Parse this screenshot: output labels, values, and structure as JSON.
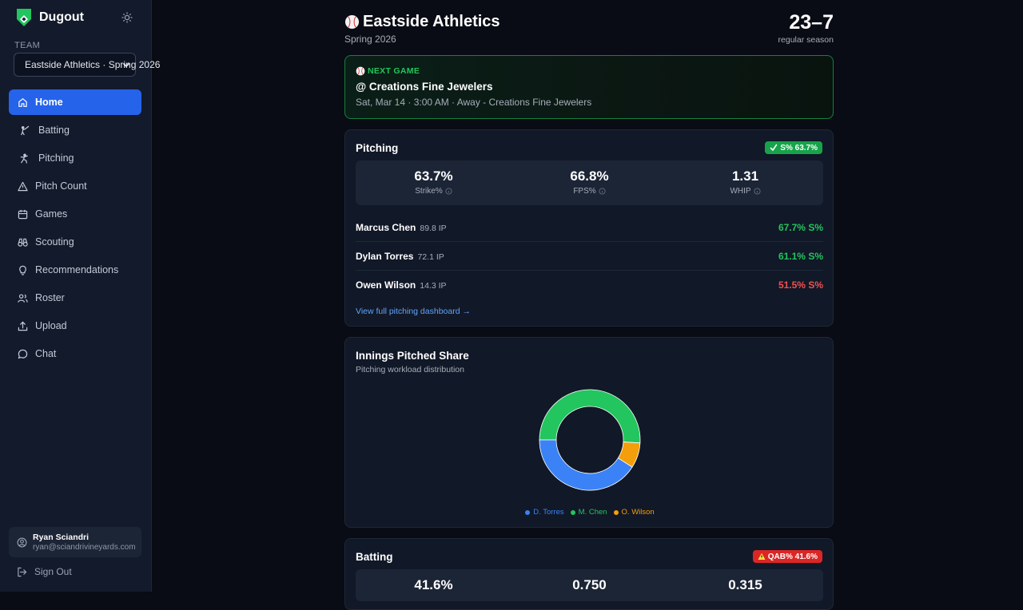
{
  "app": {
    "name": "Dugout"
  },
  "sidebar": {
    "team_label": "TEAM",
    "team_select_value": "Eastside Athletics · Spring 2026",
    "nav": [
      {
        "label": "Home",
        "icon": "home-icon",
        "active": true
      },
      {
        "label": "Batting",
        "icon": "batter-icon"
      },
      {
        "label": "Pitching",
        "icon": "pitcher-icon"
      },
      {
        "label": "Pitch Count",
        "icon": "warning-triangle-icon"
      },
      {
        "label": "Games",
        "icon": "calendar-icon"
      },
      {
        "label": "Scouting",
        "icon": "binoculars-icon"
      },
      {
        "label": "Recommendations",
        "icon": "lightbulb-icon"
      },
      {
        "label": "Roster",
        "icon": "users-icon"
      },
      {
        "label": "Upload",
        "icon": "upload-icon"
      },
      {
        "label": "Chat",
        "icon": "chat-bubble-icon"
      }
    ],
    "user": {
      "name": "Ryan Sciandri",
      "email": "ryan@sciandrivineyards.com"
    },
    "sign_out": "Sign Out"
  },
  "header": {
    "team_name": "Eastside Athletics",
    "season": "Spring 2026",
    "record": "23–7",
    "record_label": "regular season"
  },
  "next_game": {
    "label": "NEXT GAME",
    "opponent": "@ Creations Fine Jewelers",
    "detail": "Sat, Mar 14 · 3:00 AM · Away - Creations Fine Jewelers"
  },
  "pitching": {
    "title": "Pitching",
    "badge": "S% 63.7%",
    "stats": [
      {
        "value": "63.7%",
        "label": "Strike%"
      },
      {
        "value": "66.8%",
        "label": "FPS%"
      },
      {
        "value": "1.31",
        "label": "WHIP"
      }
    ],
    "pitchers": [
      {
        "name": "Marcus Chen",
        "ip": "89.8 IP",
        "pct": "67.7% S%",
        "status": "good"
      },
      {
        "name": "Dylan Torres",
        "ip": "72.1 IP",
        "pct": "61.1% S%",
        "status": "good"
      },
      {
        "name": "Owen Wilson",
        "ip": "14.3 IP",
        "pct": "51.5% S%",
        "status": "bad"
      }
    ],
    "link": "View full pitching dashboard →"
  },
  "innings_chart": {
    "title": "Innings Pitched Share",
    "subtitle": "Pitching workload distribution"
  },
  "chart_data": {
    "type": "pie",
    "variant": "donut",
    "title": "Innings Pitched Share",
    "subtitle": "Pitching workload distribution",
    "slices": [
      {
        "name": "M. Chen",
        "value": 89.8,
        "color": "#22c55e"
      },
      {
        "name": "O. Wilson",
        "value": 14.3,
        "color": "#f59e0b"
      },
      {
        "name": "D. Torres",
        "value": 72.1,
        "color": "#3b82f6"
      }
    ],
    "legend_order": [
      "D. Torres",
      "M. Chen",
      "O. Wilson"
    ],
    "legend_position": "bottom"
  },
  "batting": {
    "title": "Batting",
    "badge": "QAB% 41.6%",
    "stats": [
      {
        "value": "41.6%"
      },
      {
        "value": "0.750"
      },
      {
        "value": "0.315"
      }
    ]
  }
}
